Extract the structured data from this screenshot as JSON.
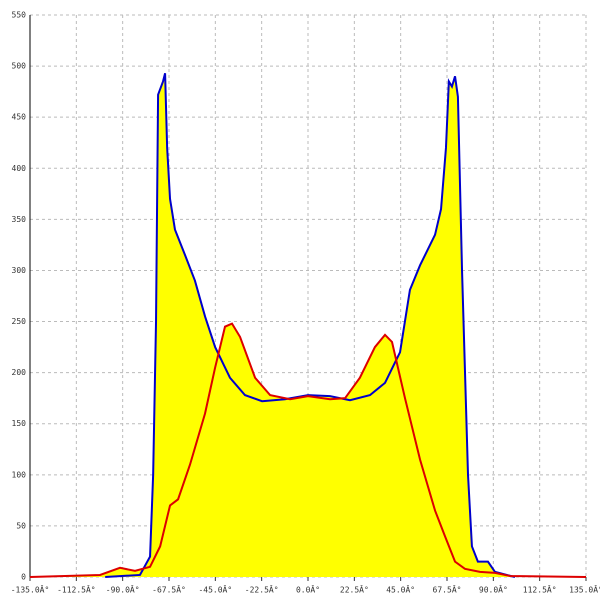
{
  "chart_data": {
    "type": "area",
    "xlim": [
      -135,
      135
    ],
    "xticks": [
      {
        "value": -135,
        "label": "-135.0Â°"
      },
      {
        "value": -112.5,
        "label": "-112.5Â°"
      },
      {
        "value": -90,
        "label": "-90.0Â°"
      },
      {
        "value": -67.5,
        "label": "-67.5Â°"
      },
      {
        "value": -45,
        "label": "-45.0Â°"
      },
      {
        "value": -22.5,
        "label": "-22.5Â°"
      },
      {
        "value": 0,
        "label": "0.0Â°"
      },
      {
        "value": 22.5,
        "label": "22.5Â°"
      },
      {
        "value": 45,
        "label": "45.0Â°"
      },
      {
        "value": 67.5,
        "label": "67.5Â°"
      },
      {
        "value": 90,
        "label": "90.0Â°"
      },
      {
        "value": 112.5,
        "label": "112.5Â°"
      },
      {
        "value": 135,
        "label": "135.0Â°"
      }
    ],
    "ylim": [
      0,
      550
    ],
    "yticks": [
      0,
      50,
      100,
      150,
      200,
      250,
      300,
      350,
      400,
      450,
      500,
      550
    ],
    "grid": true,
    "fill_color": "#ffff00",
    "series": [
      {
        "color": "#0000cc",
        "x": [
          -98.5,
          -81.6,
          -76.7,
          -75.2,
          -73.8,
          -72.8,
          -70.4,
          -69.4,
          -68.4,
          -67,
          -64.6,
          -59.7,
          -54.9,
          -50,
          -45.1,
          -37.9,
          -30.6,
          -22.3,
          -11.2,
          0,
          10.7,
          20.4,
          30.1,
          37.4,
          44.7,
          49.5,
          54.4,
          61.7,
          64.6,
          67,
          68.4,
          69.9,
          71.4,
          72.8,
          74.8,
          77.7,
          79.6,
          82.5,
          87.4,
          90.8,
          100.5
        ],
        "values": [
          0,
          2,
          20,
          100,
          250,
          472,
          485,
          493,
          420,
          370,
          340,
          315,
          290,
          255,
          225,
          195,
          178,
          172,
          174,
          178,
          177,
          173,
          178,
          190,
          220,
          281,
          305,
          335,
          360,
          420,
          485,
          480,
          490,
          470,
          300,
          100,
          30,
          15,
          15,
          5,
          0
        ]
      },
      {
        "color": "#dd0000",
        "x": [
          -135,
          -101,
          -91.3,
          -84,
          -76.7,
          -71.8,
          -67,
          -63.1,
          -57.3,
          -50,
          -45.1,
          -40.3,
          -36.9,
          -33,
          -25.7,
          -18.4,
          -8.7,
          0,
          10.7,
          18,
          25.2,
          32.5,
          37.4,
          40.8,
          47.1,
          54.4,
          61.7,
          66.5,
          71.4,
          76.2,
          83.5,
          90.8,
          98.1,
          135
        ],
        "values": [
          0,
          2,
          9,
          6,
          10,
          30,
          70,
          76,
          110,
          160,
          205,
          245,
          248,
          235,
          195,
          178,
          174,
          177,
          174,
          175,
          195,
          225,
          237,
          230,
          175,
          115,
          65,
          40,
          15,
          8,
          5,
          4,
          1,
          0
        ]
      }
    ]
  }
}
